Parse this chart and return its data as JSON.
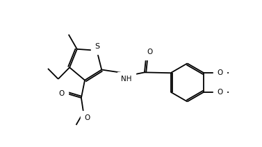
{
  "background": "#ffffff",
  "lc": "#000000",
  "lw": 1.3,
  "fs": 7.5,
  "figsize": [
    3.77,
    2.12
  ],
  "dpi": 100,
  "xlim": [
    -1.5,
    9.5
  ],
  "ylim": [
    -3.0,
    3.5
  ]
}
